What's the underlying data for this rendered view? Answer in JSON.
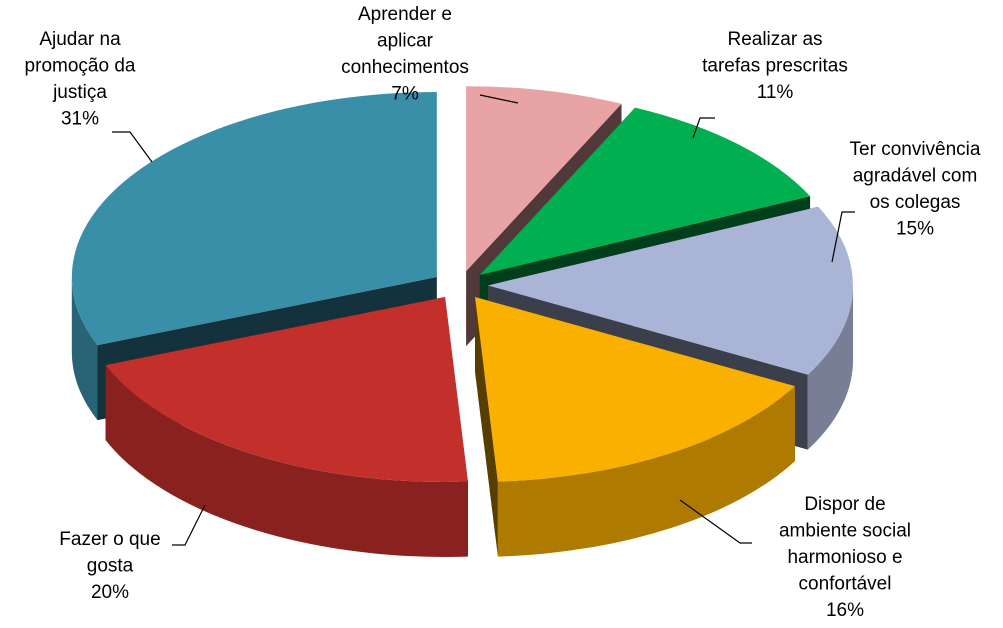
{
  "chart_data": {
    "type": "pie",
    "categories": [
      "Aprender e\naplicar\nconhecimentos",
      "Realizar as\ntarefas prescritas",
      "Ter convivência\nagradável com\nos colegas",
      "Dispor de\nambiente social\nharmonioso e\nconfortável",
      "Fazer o que\ngosta",
      "Ajudar na\npromoção da\njustiça"
    ],
    "values": [
      7,
      11,
      15,
      16,
      20,
      31
    ],
    "value_labels": [
      "7%",
      "11%",
      "15%",
      "16%",
      "20%",
      "31%"
    ],
    "colors": [
      "#e8a4a4",
      "#00b050",
      "#aab4d6",
      "#f9b000",
      "#c3302c",
      "#3a8fa8"
    ]
  }
}
